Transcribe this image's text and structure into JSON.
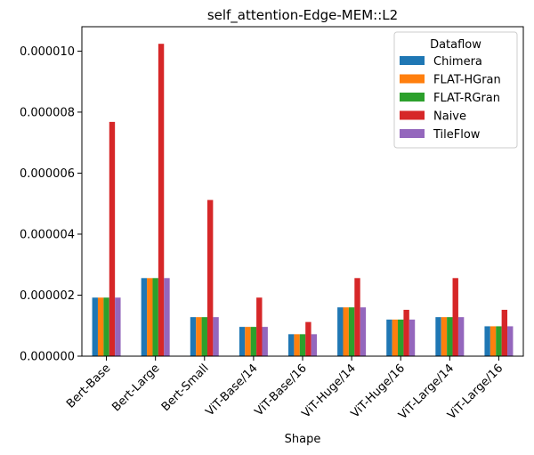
{
  "chart_data": {
    "type": "bar",
    "title": "self_attention-Edge-MEM::L2",
    "xlabel": "Shape",
    "ylabel": "",
    "ylim": [
      0,
      1.08e-05
    ],
    "yticks": [
      "0.000000",
      "0.000002",
      "0.000004",
      "0.000006",
      "0.000008",
      "0.000010"
    ],
    "ytick_values": [
      0,
      2e-06,
      4e-06,
      6e-06,
      8e-06,
      1e-05
    ],
    "categories": [
      "Bert-Base",
      "Bert-Large",
      "Bert-Small",
      "ViT-Base/14",
      "ViT-Base/16",
      "ViT-Huge/14",
      "ViT-Huge/16",
      "ViT-Large/14",
      "ViT-Large/16"
    ],
    "legend_title": "Dataflow",
    "legend_position": "top-right",
    "series": [
      {
        "name": "Chimera",
        "color": "#1f77b4",
        "values": [
          1.92e-06,
          2.56e-06,
          1.28e-06,
          9.6e-07,
          7.2e-07,
          1.6e-06,
          1.2e-06,
          1.28e-06,
          9.8e-07
        ]
      },
      {
        "name": "FLAT-HGran",
        "color": "#ff7f0e",
        "values": [
          1.92e-06,
          2.56e-06,
          1.28e-06,
          9.6e-07,
          7.2e-07,
          1.6e-06,
          1.2e-06,
          1.28e-06,
          9.8e-07
        ]
      },
      {
        "name": "FLAT-RGran",
        "color": "#2ca02c",
        "values": [
          1.92e-06,
          2.56e-06,
          1.28e-06,
          9.6e-07,
          7.2e-07,
          1.6e-06,
          1.2e-06,
          1.28e-06,
          9.8e-07
        ]
      },
      {
        "name": "Naive",
        "color": "#d62728",
        "values": [
          7.68e-06,
          1.024e-05,
          5.12e-06,
          1.92e-06,
          1.12e-06,
          2.56e-06,
          1.52e-06,
          2.56e-06,
          1.52e-06
        ]
      },
      {
        "name": "TileFlow",
        "color": "#9467bd",
        "values": [
          1.92e-06,
          2.56e-06,
          1.28e-06,
          9.6e-07,
          7.2e-07,
          1.6e-06,
          1.2e-06,
          1.28e-06,
          9.8e-07
        ]
      }
    ]
  }
}
